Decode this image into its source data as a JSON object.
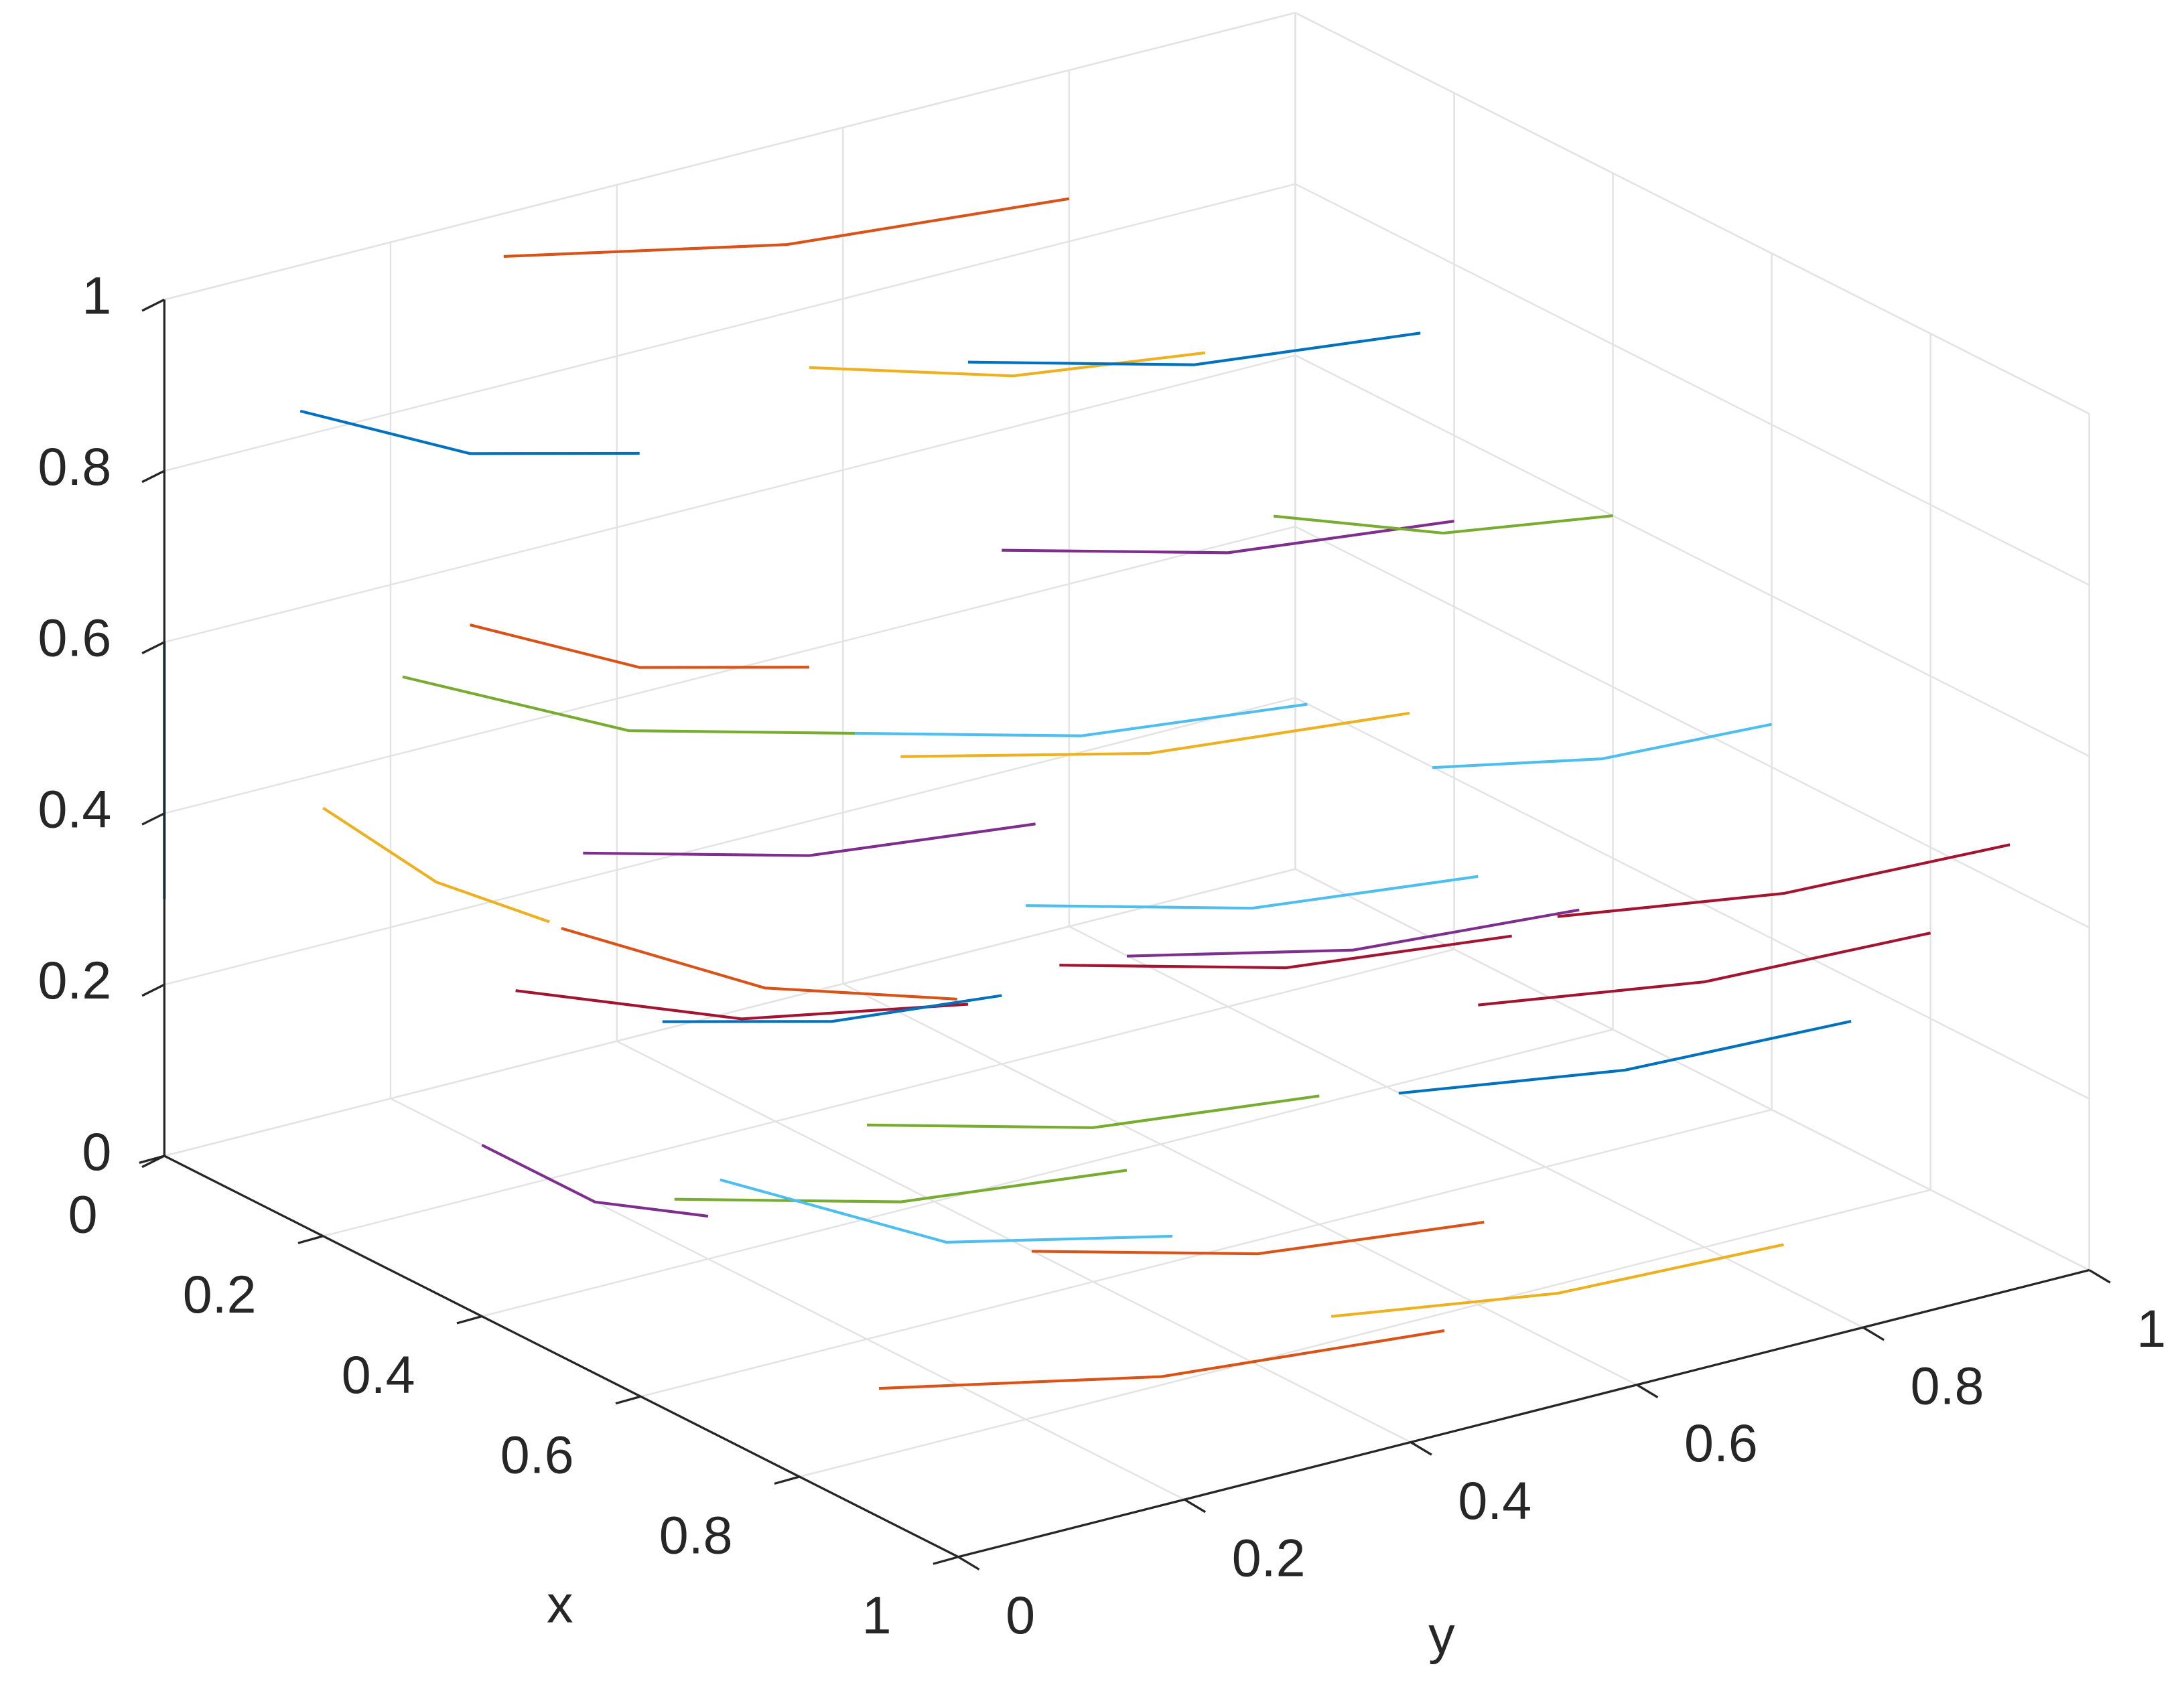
{
  "chart_data": {
    "type": "line3d",
    "xlabel": "x",
    "ylabel": "y",
    "xlim": [
      0,
      1
    ],
    "ylim": [
      0,
      1
    ],
    "zlim": [
      0,
      1
    ],
    "xticks": [
      0,
      0.2,
      0.4,
      0.6,
      0.8,
      1
    ],
    "yticks": [
      0,
      0.2,
      0.4,
      0.6,
      0.8,
      1
    ],
    "zticks": [
      0,
      0.2,
      0.4,
      0.6,
      0.8,
      1
    ],
    "grid": true,
    "series": [
      {
        "color": "#0072BD",
        "x": [
          0.1,
          0.1,
          0.1
        ],
        "y": [
          0.05,
          0.2,
          0.35
        ],
        "z": [
          0.9,
          0.8,
          0.75
        ]
      },
      {
        "color": "#D95319",
        "x": [
          0.1,
          0.1,
          0.1
        ],
        "y": [
          0.2,
          0.35,
          0.5
        ],
        "z": [
          0.6,
          0.5,
          0.45
        ]
      },
      {
        "color": "#EDB120",
        "x": [
          0.1,
          0.1,
          0.1
        ],
        "y": [
          0.5,
          0.68,
          0.85
        ],
        "z": [
          0.8,
          0.73,
          0.7
        ]
      },
      {
        "color": "#7E2F8E",
        "x": [
          0.1,
          0.1,
          0.1
        ],
        "y": [
          0.3,
          0.5,
          0.7
        ],
        "z": [
          0.3,
          0.23,
          0.2
        ]
      },
      {
        "color": "#77AC30",
        "x": [
          0.3,
          0.3,
          0.3
        ],
        "y": [
          0.0,
          0.2,
          0.4
        ],
        "z": [
          0.7,
          0.57,
          0.5
        ]
      },
      {
        "color": "#4DBEEE",
        "x": [
          0.3,
          0.3,
          0.3
        ],
        "y": [
          0.4,
          0.6,
          0.8
        ],
        "z": [
          0.5,
          0.43,
          0.4
        ]
      },
      {
        "color": "#A2142F",
        "x": [
          0.3,
          0.3,
          0.3
        ],
        "y": [
          0.1,
          0.3,
          0.5
        ],
        "z": [
          0.3,
          0.2,
          0.15
        ]
      },
      {
        "color": "#0072BD",
        "x": [
          0.3,
          0.3,
          0.3
        ],
        "y": [
          0.5,
          0.7,
          0.9
        ],
        "z": [
          0.9,
          0.83,
          0.8
        ]
      },
      {
        "color": "#D95319",
        "x": [
          0.5,
          0.5,
          0.5
        ],
        "y": [
          0.0,
          0.18,
          0.35
        ],
        "z": [
          0.5,
          0.37,
          0.3
        ]
      },
      {
        "color": "#EDB120",
        "x": [
          0.5,
          0.5,
          0.5
        ],
        "y": [
          0.3,
          0.52,
          0.75
        ],
        "z": [
          0.6,
          0.53,
          0.5
        ]
      },
      {
        "color": "#7E2F8E",
        "x": [
          0.5,
          0.5,
          0.5
        ],
        "y": [
          0.5,
          0.7,
          0.9
        ],
        "z": [
          0.3,
          0.24,
          0.22
        ]
      },
      {
        "color": "#77AC30",
        "x": [
          0.5,
          0.5,
          0.5
        ],
        "y": [
          0.1,
          0.3,
          0.5
        ],
        "z": [
          0.15,
          0.08,
          0.05
        ]
      },
      {
        "color": "#4DBEEE",
        "x": [
          0.7,
          0.7,
          0.7
        ],
        "y": [
          0.0,
          0.2,
          0.4
        ],
        "z": [
          0.3,
          0.16,
          0.1
        ]
      },
      {
        "color": "#A2142F",
        "x": [
          0.7,
          0.7,
          0.7
        ],
        "y": [
          0.3,
          0.5,
          0.7
        ],
        "z": [
          0.45,
          0.38,
          0.35
        ]
      },
      {
        "color": "#0072BD",
        "x": [
          0.7,
          0.7,
          0.7
        ],
        "y": [
          0.6,
          0.8,
          1.0
        ],
        "z": [
          0.2,
          0.16,
          0.15
        ]
      },
      {
        "color": "#D95319",
        "x": [
          0.9,
          0.9,
          0.9
        ],
        "y": [
          0.0,
          0.25,
          0.5
        ],
        "z": [
          0.15,
          0.08,
          0.05
        ]
      },
      {
        "color": "#EDB120",
        "x": [
          0.9,
          0.9,
          0.9
        ],
        "y": [
          0.4,
          0.6,
          0.8
        ],
        "z": [
          0.1,
          0.06,
          0.05
        ]
      },
      {
        "color": "#7E2F8E",
        "x": [
          0.2,
          0.2,
          0.2
        ],
        "y": [
          0.6,
          0.8,
          1.0
        ],
        "z": [
          0.6,
          0.53,
          0.5
        ]
      },
      {
        "color": "#77AC30",
        "x": [
          0.4,
          0.4,
          0.4
        ],
        "y": [
          0.7,
          0.85,
          1.0
        ],
        "z": [
          0.7,
          0.63,
          0.6
        ]
      },
      {
        "color": "#4DBEEE",
        "x": [
          0.6,
          0.6,
          0.6
        ],
        "y": [
          0.7,
          0.85,
          1.0
        ],
        "z": [
          0.5,
          0.46,
          0.45
        ]
      },
      {
        "color": "#A2142F",
        "x": [
          0.8,
          0.8,
          0.8
        ],
        "y": [
          0.6,
          0.8,
          1.0
        ],
        "z": [
          0.35,
          0.31,
          0.3
        ]
      },
      {
        "color": "#0072BD",
        "x": [
          0.0,
          0.0,
          0.0
        ],
        "y": [
          0.0,
          0.0,
          0.0
        ],
        "z": [
          0.3,
          0.45,
          0.6
        ]
      },
      {
        "color": "#D95319",
        "x": [
          0.0,
          0.0,
          0.0
        ],
        "y": [
          0.3,
          0.55,
          0.8
        ],
        "z": [
          0.95,
          0.88,
          0.85
        ]
      },
      {
        "color": "#EDB120",
        "x": [
          0.2,
          0.2,
          0.2
        ],
        "y": [
          0.0,
          0.1,
          0.2
        ],
        "z": [
          0.5,
          0.38,
          0.3
        ]
      },
      {
        "color": "#7E2F8E",
        "x": [
          0.4,
          0.4,
          0.4
        ],
        "y": [
          0.0,
          0.1,
          0.2
        ],
        "z": [
          0.2,
          0.1,
          0.05
        ]
      },
      {
        "color": "#77AC30",
        "x": [
          0.6,
          0.6,
          0.6
        ],
        "y": [
          0.2,
          0.4,
          0.6
        ],
        "z": [
          0.25,
          0.18,
          0.15
        ]
      },
      {
        "color": "#4DBEEE",
        "x": [
          0.8,
          0.8,
          0.8
        ],
        "y": [
          0.2,
          0.4,
          0.6
        ],
        "z": [
          0.6,
          0.53,
          0.5
        ]
      },
      {
        "color": "#A2142F",
        "x": [
          0.9,
          0.9,
          0.9
        ],
        "y": [
          0.6,
          0.8,
          1.0
        ],
        "z": [
          0.5,
          0.46,
          0.45
        ]
      },
      {
        "color": "#0072BD",
        "x": [
          0.2,
          0.2,
          0.2
        ],
        "y": [
          0.3,
          0.45,
          0.6
        ],
        "z": [
          0.15,
          0.1,
          0.08
        ]
      },
      {
        "color": "#D95319",
        "x": [
          0.95,
          0.95,
          0.95
        ],
        "y": [
          0.1,
          0.3,
          0.5
        ],
        "z": [
          0.3,
          0.23,
          0.2
        ]
      }
    ]
  }
}
